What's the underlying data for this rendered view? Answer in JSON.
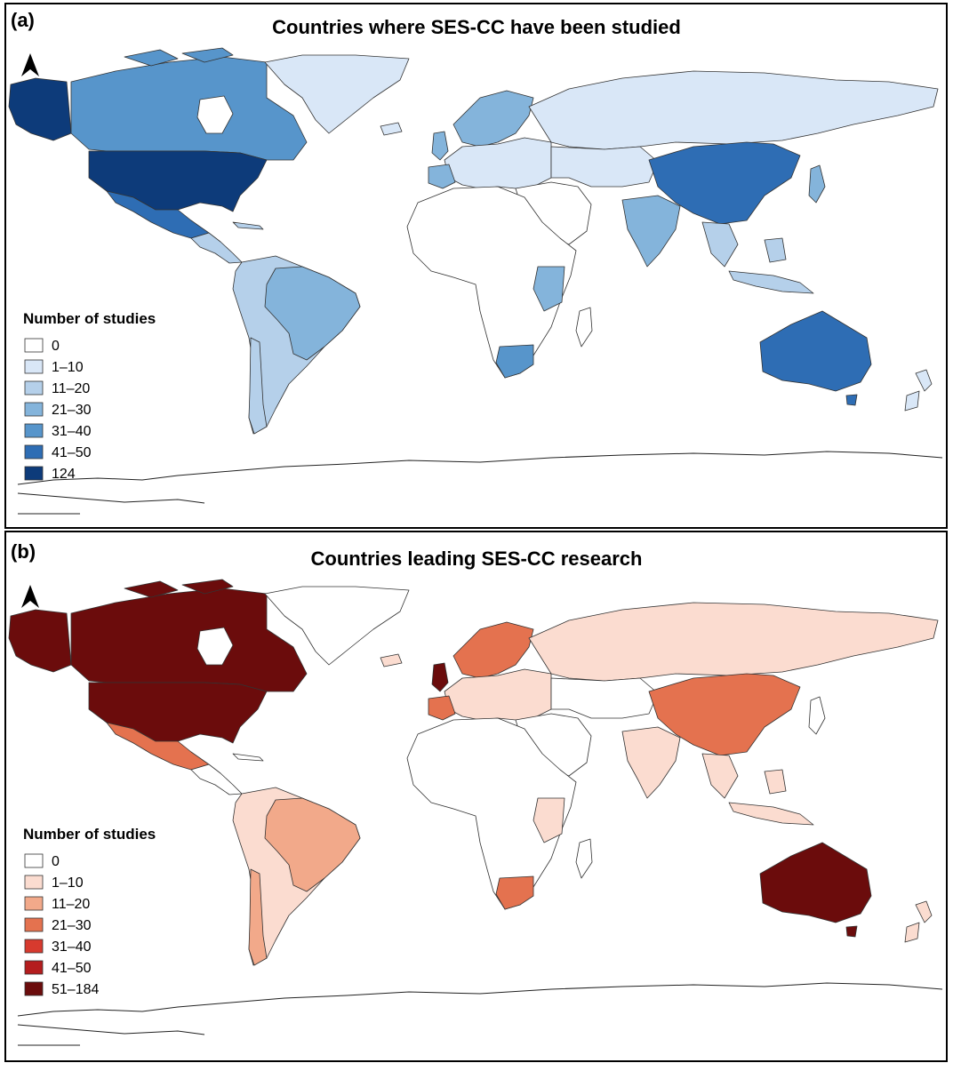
{
  "panels": [
    {
      "label": "(a)",
      "title": "Countries where SES-CC have been studied",
      "legend": {
        "title": "Number of studies",
        "items": [
          {
            "label": "0",
            "color": "#ffffff"
          },
          {
            "label": "1–10",
            "color": "#d9e7f7"
          },
          {
            "label": "11–20",
            "color": "#b5d0ea"
          },
          {
            "label": "21–30",
            "color": "#84b4db"
          },
          {
            "label": "31–40",
            "color": "#5795cb"
          },
          {
            "label": "41–50",
            "color": "#2e6db4"
          },
          {
            "label": "124",
            "color": "#0d3b7a"
          }
        ]
      },
      "regions": {
        "canada": "#5795cb",
        "alaska": "#0d3b7a",
        "usa": "#0d3b7a",
        "mexico": "#2e6db4",
        "central_america": "#b5d0ea",
        "south_america": "#b5d0ea",
        "brazil": "#84b4db",
        "chile": "#b5d0ea",
        "greenland": "#d9e7f7",
        "europe": "#d9e7f7",
        "scandinavia": "#84b4db",
        "uk": "#84b4db",
        "iberia": "#84b4db",
        "russia": "#d9e7f7",
        "china": "#2e6db4",
        "india": "#84b4db",
        "se_asia": "#b5d0ea",
        "africa": "#ffffff",
        "east_africa": "#84b4db",
        "south_africa": "#5795cb",
        "madagascar": "#ffffff",
        "australia": "#2e6db4",
        "new_zealand": "#d9e7f7",
        "middle_east": "#ffffff",
        "central_asia": "#d9e7f7",
        "japan": "#84b4db"
      }
    },
    {
      "label": "(b)",
      "title": "Countries leading SES-CC research",
      "legend": {
        "title": "Number of studies",
        "items": [
          {
            "label": "0",
            "color": "#ffffff"
          },
          {
            "label": "1–10",
            "color": "#fbdcd0"
          },
          {
            "label": "11–20",
            "color": "#f2a98a"
          },
          {
            "label": "21–30",
            "color": "#e4724f"
          },
          {
            "label": "31–40",
            "color": "#d73a2e"
          },
          {
            "label": "41–50",
            "color": "#b41d1e"
          },
          {
            "label": "51–184",
            "color": "#6b0c0c"
          }
        ]
      },
      "regions": {
        "canada": "#6b0c0c",
        "alaska": "#6b0c0c",
        "usa": "#6b0c0c",
        "mexico": "#e4724f",
        "central_america": "#ffffff",
        "south_america": "#fbdcd0",
        "brazil": "#f2a98a",
        "chile": "#f2a98a",
        "greenland": "#ffffff",
        "europe": "#fbdcd0",
        "scandinavia": "#e4724f",
        "uk": "#6b0c0c",
        "iberia": "#e4724f",
        "russia": "#fbdcd0",
        "china": "#e4724f",
        "india": "#fbdcd0",
        "se_asia": "#fbdcd0",
        "africa": "#ffffff",
        "east_africa": "#fbdcd0",
        "south_africa": "#e4724f",
        "madagascar": "#ffffff",
        "australia": "#6b0c0c",
        "new_zealand": "#fbdcd0",
        "middle_east": "#ffffff",
        "central_asia": "#ffffff",
        "japan": "#ffffff"
      }
    }
  ]
}
